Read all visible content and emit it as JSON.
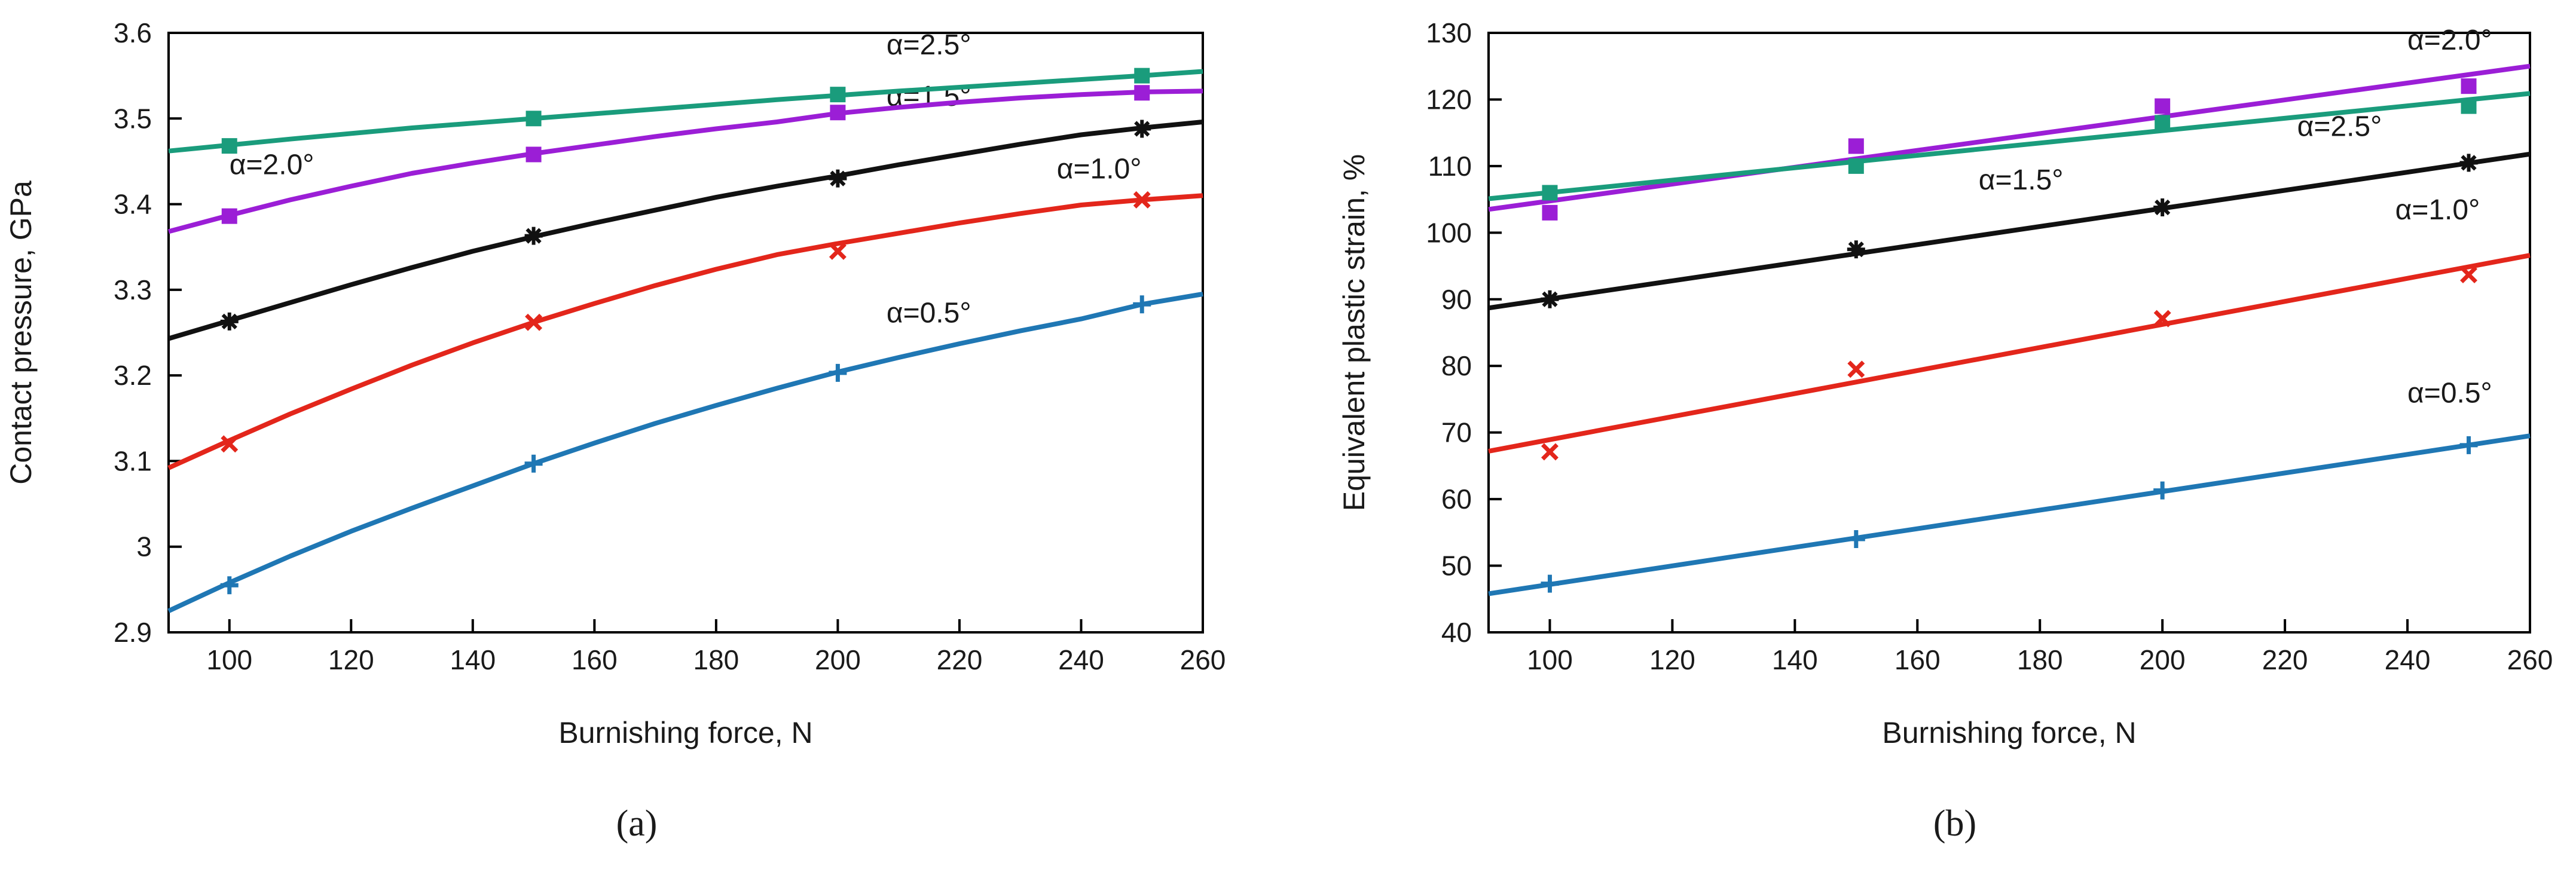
{
  "figure": {
    "panel_a_label": "(a)",
    "panel_b_label": "(b)"
  },
  "colors": {
    "a05": "#1f77b4",
    "a10": "#e3261b",
    "a15": "#111111",
    "a20": "#9b1ed6",
    "a25": "#1a9c7c",
    "axis": "#000000"
  },
  "chart_data": [
    {
      "id": "a",
      "type": "line",
      "xlabel": "Burnishing force, N",
      "ylabel": "Contact pressure, GPa",
      "xlim": [
        90,
        260
      ],
      "ylim": [
        2.9,
        3.6
      ],
      "xticks": [
        100,
        120,
        140,
        160,
        180,
        200,
        220,
        240,
        260
      ],
      "xtick_labels": [
        "100",
        "120",
        "140",
        "160",
        "180",
        "200",
        "220",
        "240",
        "260"
      ],
      "yticks": [
        2.9,
        3.0,
        3.1,
        3.2,
        3.3,
        3.4,
        3.5,
        3.6
      ],
      "ytick_labels": [
        "2.9",
        "3",
        "3.1",
        "3.2",
        "3.3",
        "3.4",
        "3.5",
        "3.6"
      ],
      "series": [
        {
          "name": "α=0.5°",
          "color_key": "a05",
          "marker": "plus",
          "x": [
            100,
            150,
            200,
            250
          ],
          "y": [
            2.955,
            3.097,
            3.203,
            3.283
          ],
          "fit_x": [
            90,
            100,
            110,
            120,
            130,
            140,
            150,
            160,
            170,
            180,
            190,
            200,
            210,
            220,
            230,
            240,
            250,
            260
          ],
          "fit_y": [
            2.925,
            2.958,
            2.989,
            3.018,
            3.045,
            3.071,
            3.097,
            3.121,
            3.144,
            3.165,
            3.185,
            3.204,
            3.221,
            3.237,
            3.252,
            3.266,
            3.283,
            3.295
          ],
          "label_x": 208,
          "label_y": 3.262
        },
        {
          "name": "α=1.0°",
          "color_key": "a10",
          "marker": "x",
          "x": [
            100,
            150,
            200,
            250
          ],
          "y": [
            3.12,
            3.262,
            3.345,
            3.405
          ],
          "fit_x": [
            90,
            100,
            110,
            120,
            130,
            140,
            150,
            160,
            170,
            180,
            190,
            200,
            210,
            220,
            230,
            240,
            250,
            260
          ],
          "fit_y": [
            3.092,
            3.124,
            3.155,
            3.184,
            3.212,
            3.238,
            3.262,
            3.284,
            3.305,
            3.324,
            3.341,
            3.354,
            3.366,
            3.378,
            3.389,
            3.399,
            3.405,
            3.41
          ],
          "label_x": 236,
          "label_y": 3.43
        },
        {
          "name": "α=1.5°",
          "color_key": "a15",
          "marker": "star",
          "x": [
            100,
            150,
            200,
            250
          ],
          "y": [
            3.263,
            3.363,
            3.43,
            3.488
          ],
          "fit_x": [
            90,
            100,
            110,
            120,
            130,
            140,
            150,
            160,
            170,
            180,
            190,
            200,
            210,
            220,
            230,
            240,
            250,
            260
          ],
          "fit_y": [
            3.243,
            3.264,
            3.285,
            3.306,
            3.326,
            3.345,
            3.362,
            3.378,
            3.393,
            3.408,
            3.421,
            3.433,
            3.446,
            3.458,
            3.47,
            3.481,
            3.489,
            3.496
          ],
          "label_x": 208,
          "label_y": 3.515
        },
        {
          "name": "α=2.0°",
          "color_key": "a20",
          "marker": "square",
          "x": [
            100,
            150,
            200,
            250
          ],
          "y": [
            3.386,
            3.458,
            3.507,
            3.53
          ],
          "fit_x": [
            90,
            100,
            110,
            120,
            130,
            140,
            150,
            160,
            170,
            180,
            190,
            200,
            210,
            220,
            230,
            240,
            250,
            260
          ],
          "fit_y": [
            3.368,
            3.387,
            3.405,
            3.421,
            3.436,
            3.448,
            3.459,
            3.469,
            3.479,
            3.488,
            3.496,
            3.506,
            3.513,
            3.519,
            3.524,
            3.528,
            3.531,
            3.532
          ],
          "label_x": 100,
          "label_y": 3.435
        },
        {
          "name": "α=2.5°",
          "color_key": "a25",
          "marker": "square",
          "x": [
            100,
            150,
            200,
            250
          ],
          "y": [
            3.468,
            3.5,
            3.528,
            3.55
          ],
          "fit_x": [
            90,
            110,
            130,
            150,
            170,
            190,
            210,
            230,
            250,
            260
          ],
          "fit_y": [
            3.462,
            3.476,
            3.489,
            3.5,
            3.511,
            3.522,
            3.532,
            3.541,
            3.55,
            3.555
          ],
          "label_x": 208,
          "label_y": 3.575
        }
      ]
    },
    {
      "id": "b",
      "type": "line",
      "xlabel": "Burnishing force, N",
      "ylabel": "Equivalent plastic strain, %",
      "xlim": [
        90,
        260
      ],
      "ylim": [
        40,
        130
      ],
      "xticks": [
        100,
        120,
        140,
        160,
        180,
        200,
        220,
        240,
        260
      ],
      "xtick_labels": [
        "100",
        "120",
        "140",
        "160",
        "180",
        "200",
        "220",
        "240",
        "260"
      ],
      "yticks": [
        40,
        50,
        60,
        70,
        80,
        90,
        100,
        110,
        120,
        130
      ],
      "ytick_labels": [
        "40",
        "50",
        "60",
        "70",
        "80",
        "90",
        "100",
        "110",
        "120",
        "130"
      ],
      "series": [
        {
          "name": "α=0.5°",
          "color_key": "a05",
          "marker": "plus",
          "x": [
            100,
            150,
            200,
            250
          ],
          "y": [
            47.3,
            54,
            61.3,
            68.1
          ],
          "fit_x": [
            90,
            260
          ],
          "fit_y": [
            45.8,
            69.5
          ],
          "label_x": 240,
          "label_y": 74.5
        },
        {
          "name": "α=1.0°",
          "color_key": "a10",
          "marker": "x",
          "x": [
            100,
            150,
            200,
            250
          ],
          "y": [
            67.1,
            79.5,
            87.1,
            93.7
          ],
          "fit_x": [
            90,
            260
          ],
          "fit_y": [
            67.2,
            96.6
          ],
          "label_x": 238,
          "label_y": 102
        },
        {
          "name": "α=1.5°",
          "color_key": "a15",
          "marker": "star",
          "x": [
            100,
            150,
            200,
            250
          ],
          "y": [
            90,
            97.5,
            103.8,
            110.5
          ],
          "fit_x": [
            90,
            260
          ],
          "fit_y": [
            88.7,
            111.8
          ],
          "label_x": 170,
          "label_y": 106.5
        },
        {
          "name": "α=2.0°",
          "color_key": "a20",
          "marker": "square",
          "x": [
            100,
            150,
            200,
            250
          ],
          "y": [
            103,
            113,
            119,
            122
          ],
          "fit_x": [
            90,
            260
          ],
          "fit_y": [
            103.5,
            125
          ],
          "label_x": 240,
          "label_y": 127.5
        },
        {
          "name": "α=2.5°",
          "color_key": "a25",
          "marker": "square",
          "x": [
            100,
            150,
            200,
            250
          ],
          "y": [
            106,
            110,
            116.5,
            119
          ],
          "fit_x": [
            90,
            260
          ],
          "fit_y": [
            105.1,
            120.9
          ],
          "label_x": 222,
          "label_y": 114.5
        }
      ]
    }
  ]
}
